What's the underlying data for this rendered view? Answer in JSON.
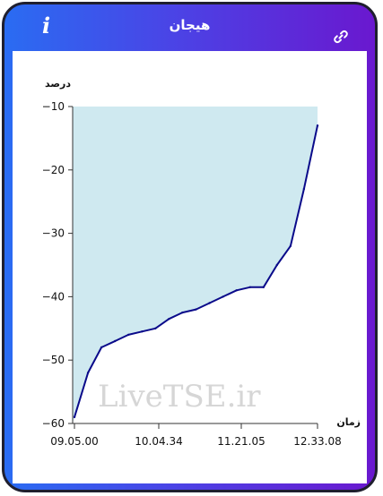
{
  "header": {
    "title": "هیجان",
    "info_glyph": "i",
    "icons": {
      "info": "info-icon",
      "link": "link-icon"
    }
  },
  "watermark": "LiveTSE.ir",
  "colors": {
    "line": "#0a0a8a",
    "fill": "#cfe9f0",
    "accent": "#4a44e6"
  },
  "chart_data": {
    "type": "area",
    "ylabel": "درصد",
    "xlabel": "زمان",
    "ylim": [
      -60,
      -10
    ],
    "yticks": [
      -10,
      -20,
      -30,
      -40,
      -50,
      -60
    ],
    "xticks": [
      "09.05.00",
      "10.04.34",
      "11.21.05",
      "12.33.08"
    ],
    "grid": false,
    "series": [
      {
        "x": [
          "09.05.00",
          "09.10",
          "09.20",
          "09.30",
          "09.40",
          "09.50",
          "10.00",
          "10.04.34",
          "10.20",
          "10.40",
          "11.00",
          "11.21.05",
          "11.40",
          "12.00",
          "12.10",
          "12.20",
          "12.25",
          "12.30",
          "12.33.08"
        ],
        "values": [
          -59,
          -52,
          -48,
          -47,
          -46,
          -45.5,
          -45,
          -43.5,
          -42.5,
          -42,
          -41,
          -40,
          -39,
          -38.5,
          -38.5,
          -35,
          -32,
          -23,
          -13
        ]
      }
    ]
  }
}
